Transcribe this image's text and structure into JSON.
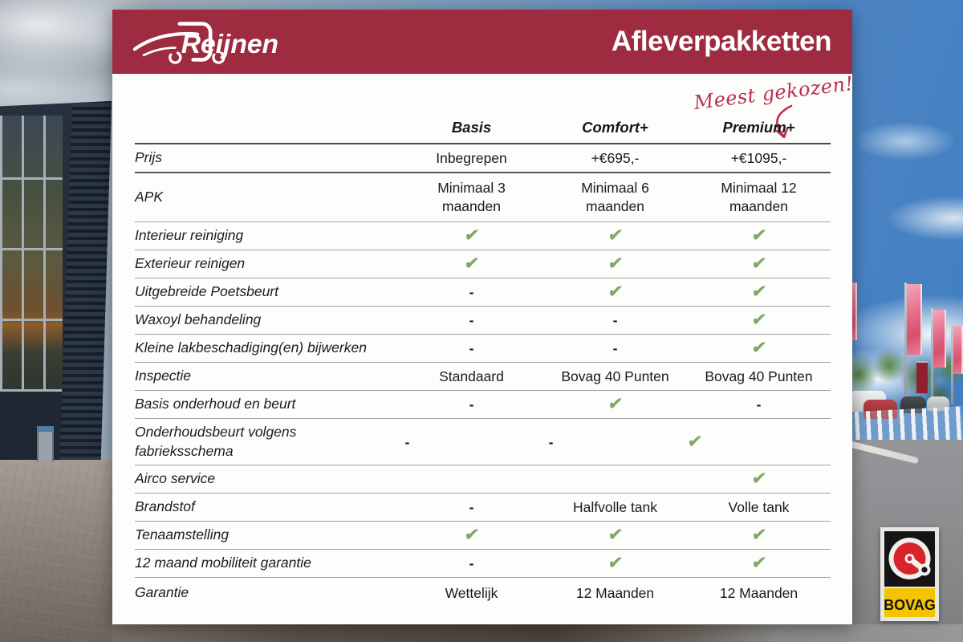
{
  "header": {
    "brand": "Reijnen",
    "title": "Afleverpakketten"
  },
  "annotation": {
    "text": "Meest gekozen!",
    "arrow_target": "Premium+"
  },
  "table": {
    "columns": [
      "Basis",
      "Comfort+",
      "Premium+"
    ],
    "check_symbol": "✔",
    "rows": [
      {
        "label": "Prijs",
        "values": [
          "Inbegrepen",
          "+€695,-",
          "+€1095,-"
        ]
      },
      {
        "label": "APK",
        "values": [
          "Minimaal 3 maanden",
          "Minimaal 6 maanden",
          "Minimaal 12 maanden"
        ]
      },
      {
        "label": "Interieur reiniging",
        "values": [
          "✔",
          "✔",
          "✔"
        ]
      },
      {
        "label": "Exterieur reinigen",
        "values": [
          "✔",
          "✔",
          "✔"
        ]
      },
      {
        "label": "Uitgebreide Poetsbeurt",
        "values": [
          "-",
          "✔",
          "✔"
        ]
      },
      {
        "label": "Waxoyl behandeling",
        "values": [
          "-",
          "-",
          "✔"
        ]
      },
      {
        "label": "Kleine lakbeschadiging(en) bijwerken",
        "values": [
          "-",
          "-",
          "✔"
        ]
      },
      {
        "label": "Inspectie",
        "values": [
          "Standaard",
          "Bovag 40 Punten",
          "Bovag 40 Punten"
        ]
      },
      {
        "label": "Basis onderhoud en beurt",
        "values": [
          "-",
          "✔",
          "-"
        ]
      },
      {
        "label": "Onderhoudsbeurt volgens fabrieksschema",
        "values": [
          "-",
          "-",
          "✔"
        ]
      },
      {
        "label": "Airco service",
        "values": [
          "",
          "",
          "✔"
        ]
      },
      {
        "label": "Brandstof",
        "values": [
          "-",
          "Halfvolle tank",
          "Volle tank"
        ]
      },
      {
        "label": "Tenaamstelling",
        "values": [
          "✔",
          "✔",
          "✔"
        ]
      },
      {
        "label": "12 maand mobiliteit garantie",
        "values": [
          "-",
          "✔",
          "✔"
        ]
      },
      {
        "label": "Garantie",
        "values": [
          "Wettelijk",
          "12 Maanden",
          "12 Maanden"
        ]
      }
    ]
  },
  "badge": {
    "bovag_label": "BOVAG"
  },
  "colors": {
    "header_red": "#9e2b40",
    "annotation_red": "#bc2e4f",
    "check_green": "#7da968",
    "bovag_yellow": "#f4c400",
    "bovag_red": "#d8232a"
  },
  "chart_data": {
    "type": "table",
    "title": "Afleverpakketten",
    "columns": [
      "",
      "Basis",
      "Comfort+",
      "Premium+"
    ],
    "rows": [
      [
        "Prijs",
        "Inbegrepen",
        "+€695,-",
        "+€1095,-"
      ],
      [
        "APK",
        "Minimaal 3 maanden",
        "Minimaal 6 maanden",
        "Minimaal 12 maanden"
      ],
      [
        "Interieur reiniging",
        "✔",
        "✔",
        "✔"
      ],
      [
        "Exterieur reinigen",
        "✔",
        "✔",
        "✔"
      ],
      [
        "Uitgebreide Poetsbeurt",
        "-",
        "✔",
        "✔"
      ],
      [
        "Waxoyl behandeling",
        "-",
        "-",
        "✔"
      ],
      [
        "Kleine lakbeschadiging(en) bijwerken",
        "-",
        "-",
        "✔"
      ],
      [
        "Inspectie",
        "Standaard",
        "Bovag 40 Punten",
        "Bovag 40 Punten"
      ],
      [
        "Basis onderhoud en beurt",
        "-",
        "✔",
        "-"
      ],
      [
        "Onderhoudsbeurt volgens fabrieksschema",
        "-",
        "-",
        "✔"
      ],
      [
        "Airco service",
        "",
        "",
        "✔"
      ],
      [
        "Brandstof",
        "-",
        "Halfvolle tank",
        "Volle tank"
      ],
      [
        "Tenaamstelling",
        "✔",
        "✔",
        "✔"
      ],
      [
        "12 maand mobiliteit garantie",
        "-",
        "✔",
        "✔"
      ],
      [
        "Garantie",
        "Wettelijk",
        "12 Maanden",
        "12 Maanden"
      ]
    ],
    "annotation": "Meest gekozen! → Premium+"
  }
}
